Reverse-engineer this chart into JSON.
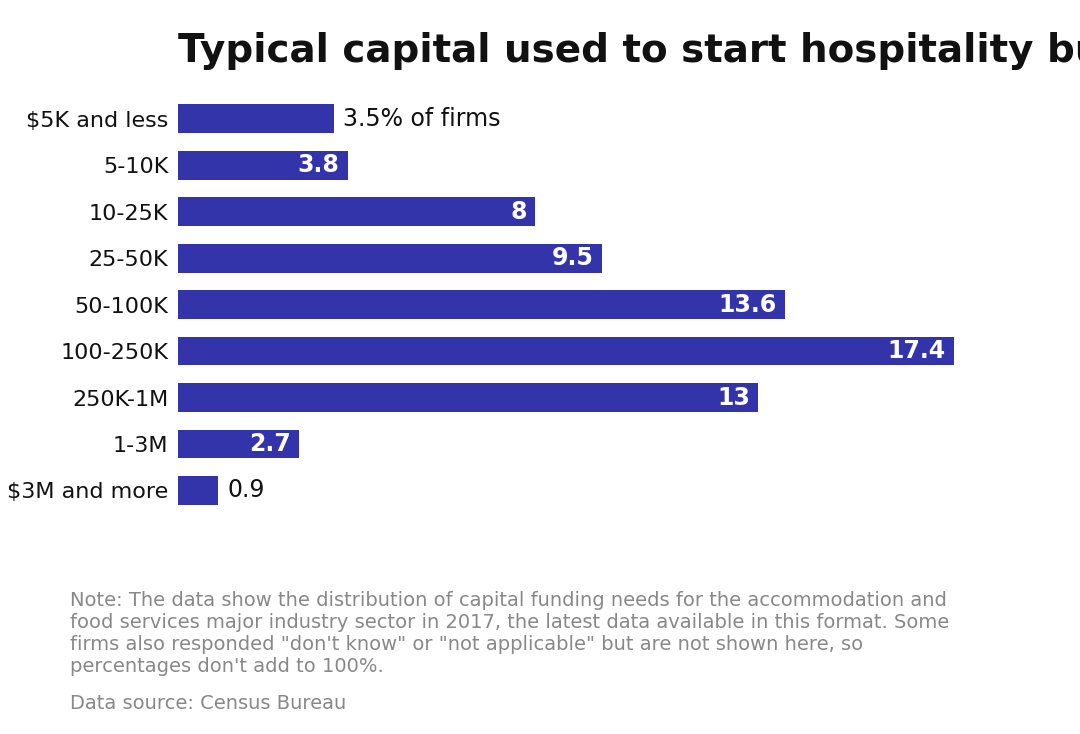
{
  "title": "Typical capital used to start hospitality businesses",
  "categories": [
    "$5K and less",
    "5-10K",
    "10-25K",
    "25-50K",
    "50-100K",
    "100-250K",
    "250K-1M",
    "1-3M",
    "$3M and more"
  ],
  "values": [
    3.5,
    3.8,
    8.0,
    9.5,
    13.6,
    17.4,
    13.0,
    2.7,
    0.9
  ],
  "bar_color": "#3333AA",
  "label_color_inside": "#FFFFFF",
  "label_color_outside": "#111111",
  "outside_labels": [
    "$5K and less",
    "$3M and more"
  ],
  "special_first_label": "3.5% of firms",
  "note_text": "Note: The data show the distribution of capital funding needs for the accommodation and\nfood services major industry sector in 2017, the latest data available in this format. Some\nfirms also responded \"don't know\" or \"not applicable\" but are not shown here, so\npercentages don't add to 100%.",
  "source_text": "Data source: Census Bureau",
  "title_fontsize": 28,
  "label_fontsize": 17,
  "category_fontsize": 16,
  "note_fontsize": 14,
  "source_fontsize": 14,
  "background_color": "#FFFFFF",
  "xlim": [
    0,
    19.5
  ]
}
